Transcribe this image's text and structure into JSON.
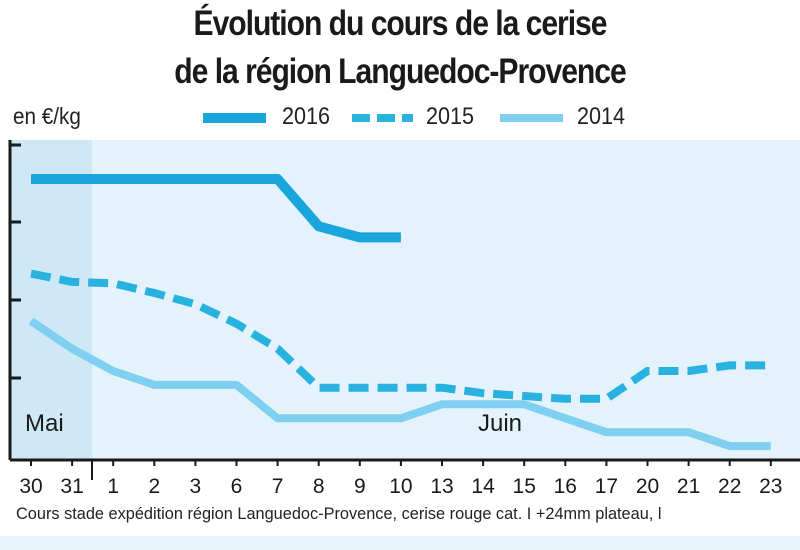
{
  "chart_data": {
    "type": "line",
    "title": "Évolution du cours de la cerise",
    "subtitle": "de la région Languedoc-Provence",
    "ylabel": "en €/kg",
    "y_ticks_labeled": false,
    "grid": false,
    "legend_position": "top",
    "month_labels": [
      "Mai",
      "Juin"
    ],
    "categories": [
      "30",
      "31",
      "1",
      "2",
      "3",
      "6",
      "7",
      "8",
      "9",
      "10",
      "13",
      "14",
      "15",
      "16",
      "17",
      "20",
      "21",
      "22",
      "23"
    ],
    "series": [
      {
        "name": "2016",
        "style": "solid-thick",
        "color": "#1aa6dc",
        "values": [
          9.6,
          9.6,
          9.6,
          9.6,
          9.6,
          9.6,
          9.6,
          7.9,
          7.5,
          7.5,
          null,
          null,
          null,
          null,
          null,
          null,
          null,
          null,
          null
        ]
      },
      {
        "name": "2015",
        "style": "dashed",
        "color": "#29b2e0",
        "values": [
          6.2,
          5.9,
          5.85,
          5.5,
          5.1,
          4.4,
          3.5,
          2.1,
          2.1,
          2.1,
          2.1,
          1.9,
          1.8,
          1.7,
          1.7,
          2.7,
          2.7,
          2.9,
          2.9
        ]
      },
      {
        "name": "2014",
        "style": "solid",
        "color": "#7fd0f0",
        "values": [
          4.5,
          3.5,
          2.7,
          2.2,
          2.2,
          2.2,
          1.0,
          1.0,
          1.0,
          1.0,
          1.5,
          1.5,
          1.5,
          1.0,
          0.5,
          0.5,
          0.5,
          0.0,
          0.0
        ]
      }
    ],
    "ylim": [
      -0.5,
      11.0
    ],
    "footnote": "Cours stade expédition région Languedoc-Provence, cerise rouge cat. I +24mm plateau, l"
  },
  "colors": {
    "plot_bg": "#e3f2fb",
    "mai_bg": "#cfe8f6",
    "axis": "#1a1a1a"
  }
}
